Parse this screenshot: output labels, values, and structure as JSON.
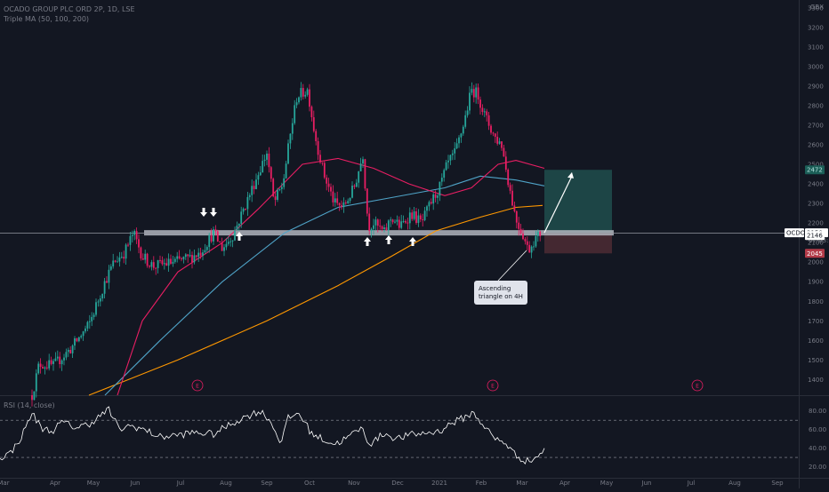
{
  "header": {
    "title": "OCADO GROUP PLC ORD 2P, 1D, LSE",
    "indicator": "Triple MA (50, 100, 200)",
    "currency": "GBX"
  },
  "rsi": {
    "label": "RSI (14, close)",
    "ticks": [
      "80.00",
      "60.00",
      "40.00",
      "20.00"
    ],
    "tick_values": [
      80,
      60,
      40,
      20
    ],
    "band_upper": 70,
    "band_lower": 30,
    "ylim": [
      10,
      95
    ]
  },
  "price_axis": {
    "ticks": [
      "3300",
      "3200",
      "3100",
      "3000",
      "2900",
      "2800",
      "2700",
      "2600",
      "2500",
      "2400",
      "2300",
      "2200",
      "2100",
      "2000",
      "1900",
      "1800",
      "1700",
      "1600",
      "1500",
      "1400"
    ],
    "tick_values": [
      3300,
      3200,
      3100,
      3000,
      2900,
      2800,
      2700,
      2600,
      2500,
      2400,
      2300,
      2200,
      2100,
      2000,
      1900,
      1800,
      1700,
      1600,
      1500,
      1400
    ]
  },
  "labels": {
    "symbol": "OCDO",
    "last_price": "2150",
    "countdown": "07:03:0",
    "alt_price": "2146",
    "target": "2472",
    "stop": "2045"
  },
  "annotation": {
    "text_line1": "Ascending",
    "text_line2": "triangle on 4H"
  },
  "time_axis": [
    "Mar",
    "Apr",
    "May",
    "Jun",
    "Jul",
    "Aug",
    "Sep",
    "Oct",
    "Nov",
    "Dec",
    "2021",
    "Feb",
    "Mar",
    "Apr",
    "May",
    "Jun",
    "Jul",
    "Aug",
    "Sep"
  ],
  "earnings_marker": "E",
  "colors": {
    "background": "#131722",
    "up": "#26a69a",
    "down": "#e91e63",
    "ma50": "#e91e63",
    "ma100": "#4fa3c7",
    "ma200": "#ff9800",
    "rsi": "#ffffff",
    "target_zone": "#1f4a4a",
    "stop_zone": "#4a2a33"
  },
  "chart_data": {
    "type": "candlestick",
    "title": "OCADO GROUP PLC ORD 2P, 1D, LSE",
    "ylabel": "GBX",
    "ylim": [
      1320,
      3340
    ],
    "support_level": 2150,
    "target": 2472,
    "stop": 2045,
    "months": [
      "Mar",
      "Apr",
      "May",
      "Jun",
      "Jul",
      "Aug",
      "Sep",
      "Oct",
      "Nov",
      "Dec",
      "Jan",
      "Feb",
      "Mar"
    ],
    "monthly_close": [
      1380,
      1600,
      1900,
      2000,
      2040,
      2200,
      2650,
      2400,
      2150,
      2200,
      2550,
      2750,
      2130
    ],
    "series": [
      {
        "name": "Triple MA (50, 100, 200)",
        "values": [
          1330,
          1500,
          1850,
          2050,
          2080,
          2150,
          2330,
          2450,
          2370,
          2320,
          2420,
          2550,
          2470
        ]
      }
    ]
  }
}
